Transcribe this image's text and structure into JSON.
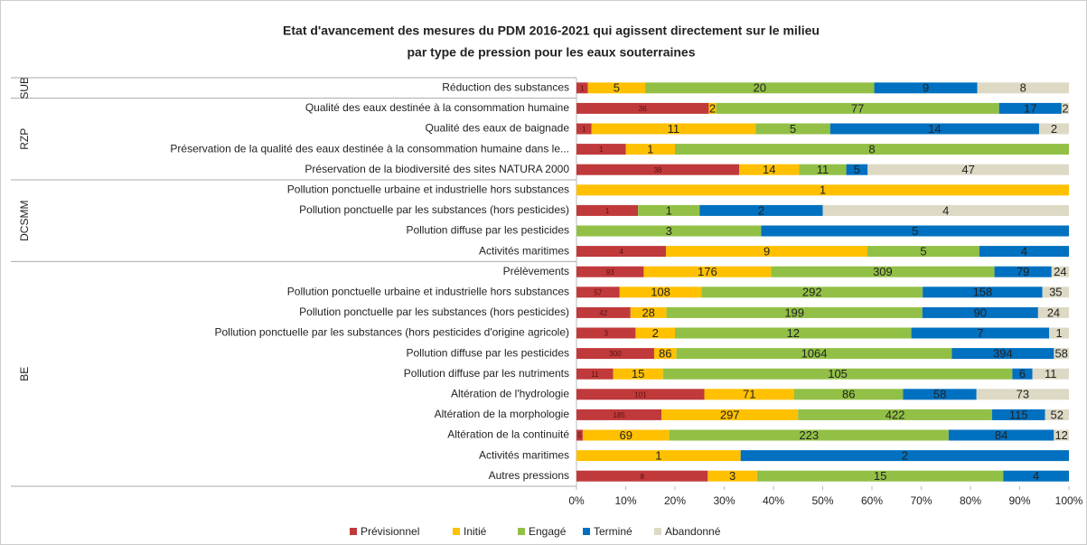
{
  "chart_data": {
    "type": "bar",
    "orientation": "horizontal",
    "stacking": "percent",
    "title": [
      "Etat d'avancement des mesures du PDM 2016-2021 qui agissent directement sur le milieu",
      "par type de pression pour les eaux souterraines"
    ],
    "categories": [
      "Réduction des substances",
      "Qualité des eaux destinée à la consommation humaine",
      "Qualité des eaux de baignade",
      "Préservation de la qualité des eaux destinée à la consommation humaine dans le...",
      "Préservation de la biodiversité des sites NATURA 2000",
      "Pollution ponctuelle urbaine et industrielle hors substances",
      "Pollution ponctuelle par les substances (hors pesticides)",
      "Pollution diffuse par les pesticides",
      "Activités maritimes",
      "Prélèvements",
      "Pollution ponctuelle urbaine et industrielle hors substances",
      "Pollution ponctuelle par les substances (hors pesticides)",
      "Pollution ponctuelle par les substances (hors pesticides d'origine agricole)",
      "Pollution diffuse par les pesticides",
      "Pollution diffuse par les nutriments",
      "Altération de l'hydrologie",
      "Altération de la morphologie",
      "Altération de la continuité",
      "Activités maritimes",
      "Autres pressions"
    ],
    "groups": [
      "SUB",
      "RZP",
      "RZP",
      "RZP",
      "RZP",
      "DCSMM",
      "DCSMM",
      "DCSMM",
      "DCSMM",
      "BE",
      "BE",
      "BE",
      "BE",
      "BE",
      "BE",
      "BE",
      "BE",
      "BE",
      "BE",
      "BE"
    ],
    "series": [
      {
        "name": "Prévisionnel",
        "color": "#c0393b",
        "values": [
          1,
          36,
          1,
          1,
          38,
          0,
          1,
          0,
          4,
          93,
          57,
          42,
          3,
          300,
          11,
          101,
          185,
          5,
          0,
          8
        ]
      },
      {
        "name": "Initié",
        "color": "#ffc000",
        "values": [
          5,
          2,
          11,
          1,
          14,
          1,
          0,
          0,
          9,
          176,
          108,
          28,
          2,
          86,
          15,
          71,
          297,
          69,
          1,
          3
        ]
      },
      {
        "name": "Engagé",
        "color": "#92c046",
        "values": [
          20,
          77,
          5,
          8,
          11,
          0,
          1,
          3,
          5,
          309,
          292,
          199,
          12,
          1064,
          105,
          86,
          422,
          223,
          0,
          15
        ]
      },
      {
        "name": "Terminé",
        "color": "#0070c0",
        "values": [
          9,
          17,
          14,
          0,
          5,
          0,
          2,
          5,
          4,
          79,
          158,
          90,
          7,
          394,
          6,
          58,
          115,
          84,
          2,
          4
        ]
      },
      {
        "name": "Abandonné",
        "color": "#ddd9c4",
        "values": [
          8,
          2,
          2,
          0,
          47,
          0,
          4,
          0,
          0,
          24,
          35,
          24,
          1,
          58,
          11,
          73,
          52,
          12,
          0,
          0
        ]
      }
    ],
    "xlim": [
      0,
      100
    ],
    "xticks": [
      {
        "value": 0,
        "label": "0%"
      },
      {
        "value": 10,
        "label": "10%"
      },
      {
        "value": 20,
        "label": "20%"
      },
      {
        "value": 30,
        "label": "30%"
      },
      {
        "value": 40,
        "label": "40%"
      },
      {
        "value": 50,
        "label": "50%"
      },
      {
        "value": 60,
        "label": "60%"
      },
      {
        "value": 70,
        "label": "70%"
      },
      {
        "value": 80,
        "label": "80%"
      },
      {
        "value": 90,
        "label": "90%"
      },
      {
        "value": 100,
        "label": "100%"
      }
    ],
    "legend": "bottom"
  }
}
